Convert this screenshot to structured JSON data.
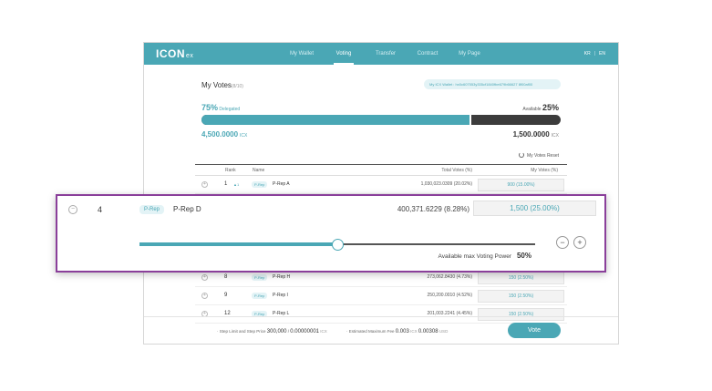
{
  "header": {
    "logo": "ICON",
    "logo_suffix": "ex",
    "nav": [
      "My Wallet",
      "Voting",
      "Transfer",
      "Contract",
      "My Page"
    ],
    "active_nav": "Voting",
    "lang_kr": "KR",
    "lang_en": "EN"
  },
  "summary": {
    "title": "My Votes",
    "title_sub": "(8/10)",
    "wallet": "My ICX Wallet : hx0c607553y335cf1840fbe679b66627 8f00af00",
    "delegated_pct": "75%",
    "delegated_label": "Delegated",
    "available_label": "Available",
    "available_pct": "25%",
    "delegated_fraction": 0.75,
    "delegated_amount": "4,500.0000",
    "delegated_unit": "ICX",
    "available_amount": "1,500.0000",
    "available_unit": "ICX",
    "reset_label": "My Votes Reset"
  },
  "table": {
    "headers": {
      "rank": "Rank",
      "name": "Name",
      "total": "Total Votes (%)",
      "my": "My Votes (%)"
    },
    "rows_top": [
      {
        "rank": "1",
        "change": "▲1",
        "tag": "P-Rep",
        "name": "P-Rep A",
        "total": "1,030,023.0309 (20.02%)",
        "my": "900 (15.00%)"
      }
    ],
    "rows_bottom": [
      {
        "rank": "8",
        "tag": "P-Rep",
        "name": "P-Rep H",
        "total": "273,062.8430 (4.73%)",
        "my": "150   (2.50%)"
      },
      {
        "rank": "9",
        "tag": "P-Rep",
        "name": "P-Rep I",
        "total": "250,200.0010 (4.52%)",
        "my": "150   (2.50%)"
      },
      {
        "rank": "12",
        "tag": "P-Rep",
        "name": "P-Rep L",
        "total": "201,003.2241 (4.45%)",
        "my": "150   (2.50%)"
      }
    ]
  },
  "popup": {
    "rank": "4",
    "tag": "P-Rep",
    "name": "P-Rep D",
    "total": "400,371.6229 (8.28%)",
    "my": "1,500 (25.00%)",
    "slider_fraction": 0.5,
    "minus": "−",
    "plus": "+",
    "max_label": "Available max Voting Power",
    "max_value": "50%"
  },
  "footer": {
    "step_label": "· Step Limit and Step Price",
    "step_limit": "300,000",
    "step_sep": "/",
    "step_price": "0.00000001",
    "step_unit": "ICX",
    "fee_label": "· Estimated Maximum Fee",
    "fee_icx": "0.003",
    "fee_icx_unit": "ICX",
    "fee_usd": "0.00308",
    "fee_usd_unit": "USD",
    "vote_button": "Vote"
  },
  "colors": {
    "accent": "#4aa7b5",
    "highlight": "#8a3f9a",
    "dark_bar": "#3c3c3c"
  }
}
